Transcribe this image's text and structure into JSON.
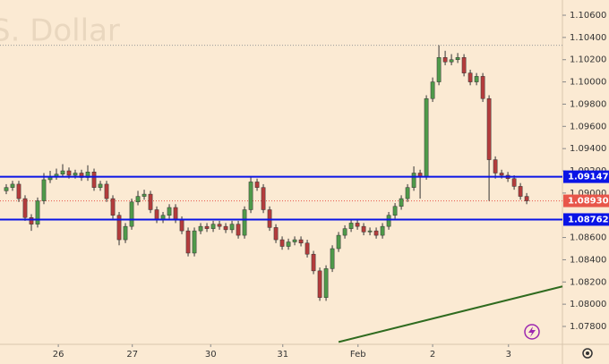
{
  "chart_data": {
    "type": "candlestick",
    "title": "S. Dollar",
    "x": [
      1,
      2,
      3,
      4,
      5,
      6,
      7,
      8,
      9,
      10,
      11,
      12,
      13,
      14,
      15,
      16,
      17,
      18,
      19,
      20,
      21,
      22,
      23,
      24,
      25,
      26,
      27,
      28,
      29,
      30,
      31,
      32,
      33,
      34,
      35,
      36,
      37,
      38,
      39,
      40,
      41,
      42,
      43,
      44,
      45,
      46,
      47,
      48,
      49,
      50,
      51,
      52,
      53,
      54,
      55,
      56,
      57,
      58,
      59,
      60,
      61,
      62,
      63,
      64,
      65,
      66,
      67,
      68,
      69,
      70,
      71,
      72,
      73,
      74,
      75,
      76,
      77,
      78,
      79,
      80,
      81,
      82,
      83,
      84
    ],
    "open": [
      1.0902,
      1.0905,
      1.0908,
      1.0895,
      1.0878,
      1.0872,
      1.0893,
      1.0912,
      1.0915,
      1.0917,
      1.092,
      1.0916,
      1.0918,
      1.0914,
      1.0919,
      1.0905,
      1.0908,
      1.0895,
      1.088,
      1.0858,
      1.087,
      1.0892,
      1.0897,
      1.0899,
      1.0885,
      1.0876,
      1.088,
      1.0887,
      1.0876,
      1.0866,
      1.0846,
      1.0866,
      1.087,
      1.0868,
      1.0872,
      1.087,
      1.0867,
      1.0872,
      1.0862,
      1.0885,
      1.091,
      1.0905,
      1.0885,
      1.0869,
      1.0858,
      1.0852,
      1.0856,
      1.0858,
      1.0855,
      1.0845,
      1.083,
      1.0806,
      1.0832,
      1.085,
      1.0862,
      1.0868,
      1.0873,
      1.087,
      1.0865,
      1.0866,
      1.0862,
      1.087,
      1.088,
      1.0888,
      1.0895,
      1.0905,
      1.0918,
      1.0915,
      1.0985,
      1.1,
      1.1022,
      1.1018,
      1.102,
      1.1022,
      1.1008,
      1.1,
      1.1005,
      1.0985,
      1.093,
      1.0918,
      1.0916,
      1.0913,
      1.0906,
      1.0897
    ],
    "high": [
      1.0908,
      1.0911,
      1.0911,
      1.0898,
      1.0881,
      1.0896,
      1.0918,
      1.092,
      1.0922,
      1.0926,
      1.0923,
      1.0921,
      1.0921,
      1.0925,
      1.0922,
      1.0911,
      1.0911,
      1.0898,
      1.0883,
      1.0873,
      1.0895,
      1.0902,
      1.0903,
      1.0902,
      1.0888,
      1.0883,
      1.089,
      1.089,
      1.0879,
      1.0869,
      1.0869,
      1.0873,
      1.0873,
      1.0875,
      1.0875,
      1.0873,
      1.0875,
      1.0875,
      1.0888,
      1.0914,
      1.0913,
      1.0908,
      1.0888,
      1.0872,
      1.0861,
      1.0859,
      1.0861,
      1.0861,
      1.0858,
      1.0848,
      1.0833,
      1.0835,
      1.0853,
      1.0865,
      1.0871,
      1.0876,
      1.0876,
      1.0873,
      1.0869,
      1.0869,
      1.0873,
      1.0883,
      1.0891,
      1.0898,
      1.0908,
      1.0924,
      1.0921,
      1.0988,
      1.1004,
      1.1033,
      1.1028,
      1.1025,
      1.1026,
      1.1025,
      1.1011,
      1.1008,
      1.1008,
      1.0988,
      1.0933,
      1.0921,
      1.0919,
      1.0916,
      1.0909,
      1.09
    ],
    "low": [
      1.0899,
      1.0902,
      1.0892,
      1.0875,
      1.0866,
      1.0869,
      1.089,
      1.0909,
      1.0912,
      1.0914,
      1.0913,
      1.0913,
      1.0911,
      1.0911,
      1.0902,
      1.0902,
      1.0892,
      1.0877,
      1.0853,
      1.0855,
      1.0867,
      1.0889,
      1.0894,
      1.0882,
      1.0873,
      1.0873,
      1.0877,
      1.0873,
      1.0863,
      1.0843,
      1.0843,
      1.0863,
      1.0865,
      1.0865,
      1.0867,
      1.0864,
      1.0864,
      1.0859,
      1.0859,
      1.0882,
      1.0902,
      1.0882,
      1.0866,
      1.0855,
      1.0849,
      1.0849,
      1.0853,
      1.0852,
      1.0842,
      1.0827,
      1.0803,
      1.0803,
      1.0829,
      1.0847,
      1.0859,
      1.0865,
      1.0867,
      1.0862,
      1.0862,
      1.0859,
      1.0859,
      1.0867,
      1.0877,
      1.0885,
      1.0892,
      1.0902,
      1.0895,
      1.0912,
      1.0982,
      1.0997,
      1.1015,
      1.1015,
      1.1017,
      1.1005,
      1.0997,
      1.0997,
      1.0982,
      1.0893,
      1.0913,
      1.0913,
      1.091,
      1.0903,
      1.0894,
      1.089
    ],
    "close": [
      1.0905,
      1.0908,
      1.0895,
      1.0878,
      1.0872,
      1.0893,
      1.0912,
      1.0915,
      1.0917,
      1.092,
      1.0916,
      1.0918,
      1.0914,
      1.0919,
      1.0905,
      1.0908,
      1.0895,
      1.088,
      1.0858,
      1.087,
      1.0892,
      1.0897,
      1.0899,
      1.0885,
      1.0876,
      1.088,
      1.0887,
      1.0876,
      1.0866,
      1.0846,
      1.0866,
      1.087,
      1.0868,
      1.0872,
      1.087,
      1.0867,
      1.0872,
      1.0862,
      1.0885,
      1.091,
      1.0905,
      1.0885,
      1.0869,
      1.0858,
      1.0852,
      1.0856,
      1.0858,
      1.0855,
      1.0845,
      1.083,
      1.0806,
      1.0832,
      1.085,
      1.0862,
      1.0868,
      1.0873,
      1.087,
      1.0865,
      1.0866,
      1.0862,
      1.087,
      1.088,
      1.0888,
      1.0895,
      1.0905,
      1.0918,
      1.0915,
      1.0985,
      1.1,
      1.1022,
      1.1018,
      1.102,
      1.1022,
      1.1008,
      1.1,
      1.1005,
      1.0985,
      1.093,
      1.0918,
      1.0916,
      1.0913,
      1.0906,
      1.0897,
      1.0893
    ],
    "up_color": "#4f9a4a",
    "down_color": "#b43c3c",
    "wick_color": "#333333",
    "xlim": [
      0,
      89.7
    ],
    "ylim": [
      1.07639,
      1.10737
    ],
    "xticks": [
      {
        "value": 9.3,
        "label": "26"
      },
      {
        "value": 21.1,
        "label": "27"
      },
      {
        "value": 33.6,
        "label": "30"
      },
      {
        "value": 45.1,
        "label": "31"
      },
      {
        "value": 57.1,
        "label": "Feb"
      },
      {
        "value": 69,
        "label": "2"
      },
      {
        "value": 81.1,
        "label": "3"
      }
    ],
    "yticks": [
      {
        "value": 1.106,
        "label": "1.10600"
      },
      {
        "value": 1.104,
        "label": "1.10400"
      },
      {
        "value": 1.102,
        "label": "1.10200"
      },
      {
        "value": 1.1,
        "label": "1.10000"
      },
      {
        "value": 1.098,
        "label": "1.09800"
      },
      {
        "value": 1.096,
        "label": "1.09600"
      },
      {
        "value": 1.094,
        "label": "1.09400"
      },
      {
        "value": 1.092,
        "label": "1.09200"
      },
      {
        "value": 1.09,
        "label": "1.09000"
      },
      {
        "value": 1.086,
        "label": "1.08600"
      },
      {
        "value": 1.084,
        "label": "1.08400"
      },
      {
        "value": 1.082,
        "label": "1.08200"
      },
      {
        "value": 1.08,
        "label": "1.08000"
      },
      {
        "value": 1.078,
        "label": "1.07800"
      }
    ],
    "levels": [
      {
        "value": 1.09147,
        "label": "1.09147",
        "color": "#0a14e6"
      },
      {
        "value": 1.08762,
        "label": "1.08762",
        "color": "#0a14e6"
      }
    ],
    "last_price": {
      "value": 1.0893,
      "label": "1.08930",
      "color": "#e8564a"
    },
    "high_line": 1.1033,
    "trendline": {
      "x": [
        54,
        89.7
      ],
      "y": [
        1.0766,
        1.0816
      ],
      "color": "#2f6b1f"
    }
  }
}
